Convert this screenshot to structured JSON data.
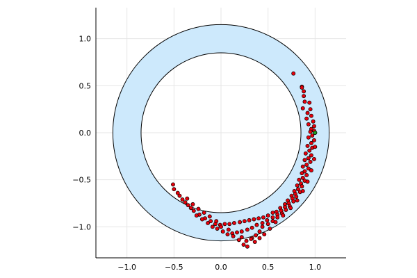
{
  "chart_data": {
    "type": "scatter",
    "title": "",
    "xlabel": "",
    "ylabel": "",
    "xlim": [
      -1.33,
      1.33
    ],
    "ylim": [
      -1.33,
      1.33
    ],
    "grid": true,
    "legend": "none",
    "aspect": "equal",
    "x_ticks": [
      {
        "value": -1.0,
        "label": "−1.0"
      },
      {
        "value": -0.5,
        "label": "−0.5"
      },
      {
        "value": 0.0,
        "label": "0.0"
      },
      {
        "value": 0.5,
        "label": "0.5"
      },
      {
        "value": 1.0,
        "label": "1.0"
      }
    ],
    "y_ticks": [
      {
        "value": 1.0,
        "label": "1.0"
      },
      {
        "value": 0.5,
        "label": "0.5"
      },
      {
        "value": 0.0,
        "label": "0.0"
      },
      {
        "value": -0.5,
        "label": "−0.5"
      },
      {
        "value": -1.0,
        "label": "−1.0"
      }
    ],
    "annulus": {
      "center": [
        0,
        0
      ],
      "inner_radius": 0.85,
      "outer_radius": 1.15,
      "fill_color": "#cde9fc",
      "stroke_color": "#000000"
    },
    "series": [
      {
        "marker_color": "#e8000b",
        "marker_edge": "#000000",
        "points": [
          [
            0.77,
            0.63
          ],
          [
            0.86,
            0.49
          ],
          [
            0.86,
            0.48
          ],
          [
            0.88,
            0.44
          ],
          [
            0.88,
            0.39
          ],
          [
            0.89,
            0.33
          ],
          [
            0.87,
            0.26
          ],
          [
            0.94,
            0.32
          ],
          [
            0.95,
            0.25
          ],
          [
            0.92,
            0.21
          ],
          [
            0.96,
            0.18
          ],
          [
            0.91,
            0.15
          ],
          [
            0.98,
            0.12
          ],
          [
            0.93,
            0.09
          ],
          [
            0.99,
            0.07
          ],
          [
            0.96,
            0.04
          ],
          [
            0.99,
            0.02
          ],
          [
            0.95,
            0.01
          ],
          [
            0.97,
            -0.03
          ],
          [
            0.93,
            -0.05
          ],
          [
            0.99,
            -0.08
          ],
          [
            0.96,
            -0.11
          ],
          [
            0.92,
            -0.14
          ],
          [
            0.97,
            -0.16
          ],
          [
            0.94,
            -0.19
          ],
          [
            0.9,
            -0.22
          ],
          [
            0.96,
            -0.24
          ],
          [
            0.93,
            -0.27
          ],
          [
            0.89,
            -0.29
          ],
          [
            0.95,
            -0.31
          ],
          [
            0.91,
            -0.34
          ],
          [
            0.87,
            -0.36
          ],
          [
            0.93,
            -0.38
          ],
          [
            0.89,
            -0.41
          ],
          [
            0.86,
            -0.43
          ],
          [
            0.91,
            -0.45
          ],
          [
            0.87,
            -0.48
          ],
          [
            0.83,
            -0.5
          ],
          [
            0.89,
            -0.51
          ],
          [
            0.85,
            -0.54
          ],
          [
            0.81,
            -0.56
          ],
          [
            0.86,
            -0.57
          ],
          [
            0.82,
            -0.6
          ],
          [
            0.78,
            -0.62
          ],
          [
            0.84,
            -0.63
          ],
          [
            0.79,
            -0.65
          ],
          [
            0.75,
            -0.67
          ],
          [
            0.8,
            -0.68
          ],
          [
            0.76,
            -0.7
          ],
          [
            0.71,
            -0.72
          ],
          [
            0.77,
            -0.73
          ],
          [
            0.72,
            -0.75
          ],
          [
            0.68,
            -0.76
          ],
          [
            0.73,
            -0.78
          ],
          [
            0.68,
            -0.79
          ],
          [
            0.63,
            -0.8
          ],
          [
            0.69,
            -0.82
          ],
          [
            0.64,
            -0.83
          ],
          [
            0.59,
            -0.84
          ],
          [
            0.65,
            -0.86
          ],
          [
            0.6,
            -0.87
          ],
          [
            0.55,
            -0.85
          ],
          [
            0.6,
            -0.9
          ],
          [
            0.55,
            -0.9
          ],
          [
            0.5,
            -0.88
          ],
          [
            0.55,
            -0.94
          ],
          [
            0.49,
            -0.93
          ],
          [
            0.45,
            -0.9
          ],
          [
            0.5,
            -0.97
          ],
          [
            0.44,
            -0.96
          ],
          [
            0.4,
            -0.91
          ],
          [
            0.44,
            -1.0
          ],
          [
            0.38,
            -0.98
          ],
          [
            0.35,
            -0.92
          ],
          [
            0.41,
            -1.05
          ],
          [
            0.33,
            -1.01
          ],
          [
            0.3,
            -0.93
          ],
          [
            0.37,
            -1.09
          ],
          [
            0.28,
            -1.03
          ],
          [
            0.25,
            -0.94
          ],
          [
            0.33,
            -1.12
          ],
          [
            0.22,
            -1.05
          ],
          [
            0.2,
            -0.95
          ],
          [
            0.27,
            -1.15
          ],
          [
            0.17,
            -1.06
          ],
          [
            0.14,
            -0.96
          ],
          [
            0.24,
            -1.19
          ],
          [
            0.12,
            -1.07
          ],
          [
            0.09,
            -0.97
          ],
          [
            0.19,
            -1.14
          ],
          [
            0.07,
            -1.08
          ],
          [
            0.04,
            -0.97
          ],
          [
            0.13,
            -1.1
          ],
          [
            0.02,
            -1.05
          ],
          [
            -0.01,
            -0.98
          ],
          [
            0.08,
            -1.03
          ],
          [
            -0.04,
            -1.02
          ],
          [
            -0.06,
            -0.97
          ],
          [
            0.0,
            -1.0
          ],
          [
            -0.09,
            -1.0
          ],
          [
            -0.11,
            -0.94
          ],
          [
            -0.05,
            -0.94
          ],
          [
            -0.14,
            -0.96
          ],
          [
            -0.17,
            -0.91
          ],
          [
            -0.12,
            -0.89
          ],
          [
            -0.2,
            -0.92
          ],
          [
            -0.23,
            -0.87
          ],
          [
            -0.18,
            -0.85
          ],
          [
            -0.26,
            -0.88
          ],
          [
            -0.29,
            -0.83
          ],
          [
            -0.24,
            -0.81
          ],
          [
            -0.32,
            -0.8
          ],
          [
            -0.35,
            -0.77
          ],
          [
            -0.3,
            -0.76
          ],
          [
            -0.38,
            -0.74
          ],
          [
            -0.41,
            -0.71
          ],
          [
            -0.36,
            -0.7
          ],
          [
            -0.44,
            -0.67
          ],
          [
            -0.46,
            -0.64
          ],
          [
            -0.5,
            -0.6
          ],
          [
            -0.51,
            -0.55
          ],
          [
            0.36,
            -1.16
          ],
          [
            0.28,
            -1.21
          ],
          [
            0.46,
            -1.08
          ],
          [
            0.41,
            -1.12
          ],
          [
            0.52,
            -1.02
          ],
          [
            0.32,
            -1.13
          ],
          [
            0.22,
            -1.11
          ],
          [
            0.58,
            -0.95
          ],
          [
            0.66,
            -0.88
          ],
          [
            0.74,
            -0.8
          ],
          [
            0.81,
            -0.72
          ],
          [
            0.87,
            -0.62
          ],
          [
            0.92,
            -0.52
          ],
          [
            0.96,
            -0.4
          ],
          [
            0.99,
            -0.28
          ],
          [
            1.0,
            -0.15
          ],
          [
            1.0,
            0.0
          ]
        ]
      },
      {
        "marker_color": "#22a022",
        "marker_edge": "#000000",
        "points": [
          [
            1.0,
            0.0
          ]
        ]
      }
    ]
  }
}
